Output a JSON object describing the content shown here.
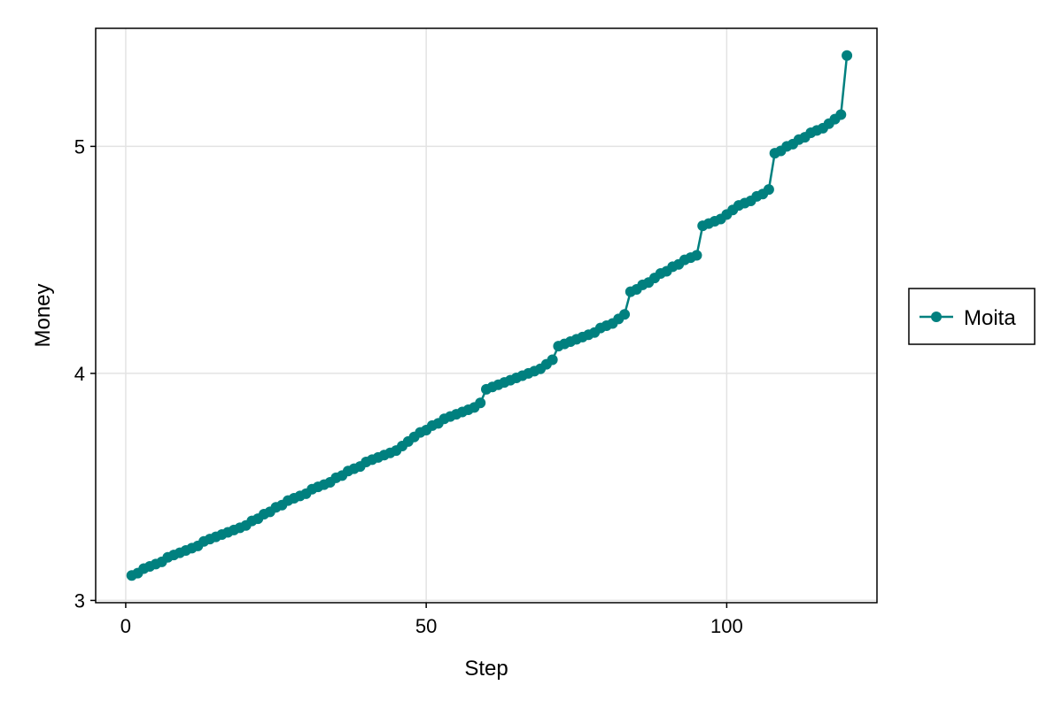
{
  "chart_data": {
    "type": "line",
    "title": "",
    "xlabel": "Step",
    "ylabel": "Money",
    "xlim": [
      -5,
      125
    ],
    "ylim": [
      2.99,
      5.52
    ],
    "xticks": [
      0,
      50,
      100
    ],
    "yticks": [
      3,
      4,
      5
    ],
    "grid": true,
    "legend_position": "right",
    "series": [
      {
        "name": "Moita",
        "color": "#00807f",
        "marker": "circle",
        "x": [
          1,
          2,
          3,
          4,
          5,
          6,
          7,
          8,
          9,
          10,
          11,
          12,
          13,
          14,
          15,
          16,
          17,
          18,
          19,
          20,
          21,
          22,
          23,
          24,
          25,
          26,
          27,
          28,
          29,
          30,
          31,
          32,
          33,
          34,
          35,
          36,
          37,
          38,
          39,
          40,
          41,
          42,
          43,
          44,
          45,
          46,
          47,
          48,
          49,
          50,
          51,
          52,
          53,
          54,
          55,
          56,
          57,
          58,
          59,
          60,
          61,
          62,
          63,
          64,
          65,
          66,
          67,
          68,
          69,
          70,
          71,
          72,
          73,
          74,
          75,
          76,
          77,
          78,
          79,
          80,
          81,
          82,
          83,
          84,
          85,
          86,
          87,
          88,
          89,
          90,
          91,
          92,
          93,
          94,
          95,
          96,
          97,
          98,
          99,
          100,
          101,
          102,
          103,
          104,
          105,
          106,
          107,
          108,
          109,
          110,
          111,
          112,
          113,
          114,
          115,
          116,
          117,
          118,
          119,
          120
        ],
        "y": [
          3.11,
          3.12,
          3.14,
          3.15,
          3.16,
          3.17,
          3.19,
          3.2,
          3.21,
          3.22,
          3.23,
          3.24,
          3.26,
          3.27,
          3.28,
          3.29,
          3.3,
          3.31,
          3.32,
          3.33,
          3.35,
          3.36,
          3.38,
          3.39,
          3.41,
          3.42,
          3.44,
          3.45,
          3.46,
          3.47,
          3.49,
          3.5,
          3.51,
          3.52,
          3.54,
          3.55,
          3.57,
          3.58,
          3.59,
          3.61,
          3.62,
          3.63,
          3.64,
          3.65,
          3.66,
          3.68,
          3.7,
          3.72,
          3.74,
          3.75,
          3.77,
          3.78,
          3.8,
          3.81,
          3.82,
          3.83,
          3.84,
          3.85,
          3.87,
          3.93,
          3.94,
          3.95,
          3.96,
          3.97,
          3.98,
          3.99,
          4.0,
          4.01,
          4.02,
          4.04,
          4.06,
          4.12,
          4.13,
          4.14,
          4.15,
          4.16,
          4.17,
          4.18,
          4.2,
          4.21,
          4.22,
          4.24,
          4.26,
          4.36,
          4.37,
          4.39,
          4.4,
          4.42,
          4.44,
          4.45,
          4.47,
          4.48,
          4.5,
          4.51,
          4.52,
          4.65,
          4.66,
          4.67,
          4.68,
          4.7,
          4.72,
          4.74,
          4.75,
          4.76,
          4.78,
          4.79,
          4.81,
          4.97,
          4.98,
          5.0,
          5.01,
          5.03,
          5.04,
          5.06,
          5.07,
          5.08,
          5.1,
          5.12,
          5.14,
          5.4
        ]
      }
    ]
  }
}
